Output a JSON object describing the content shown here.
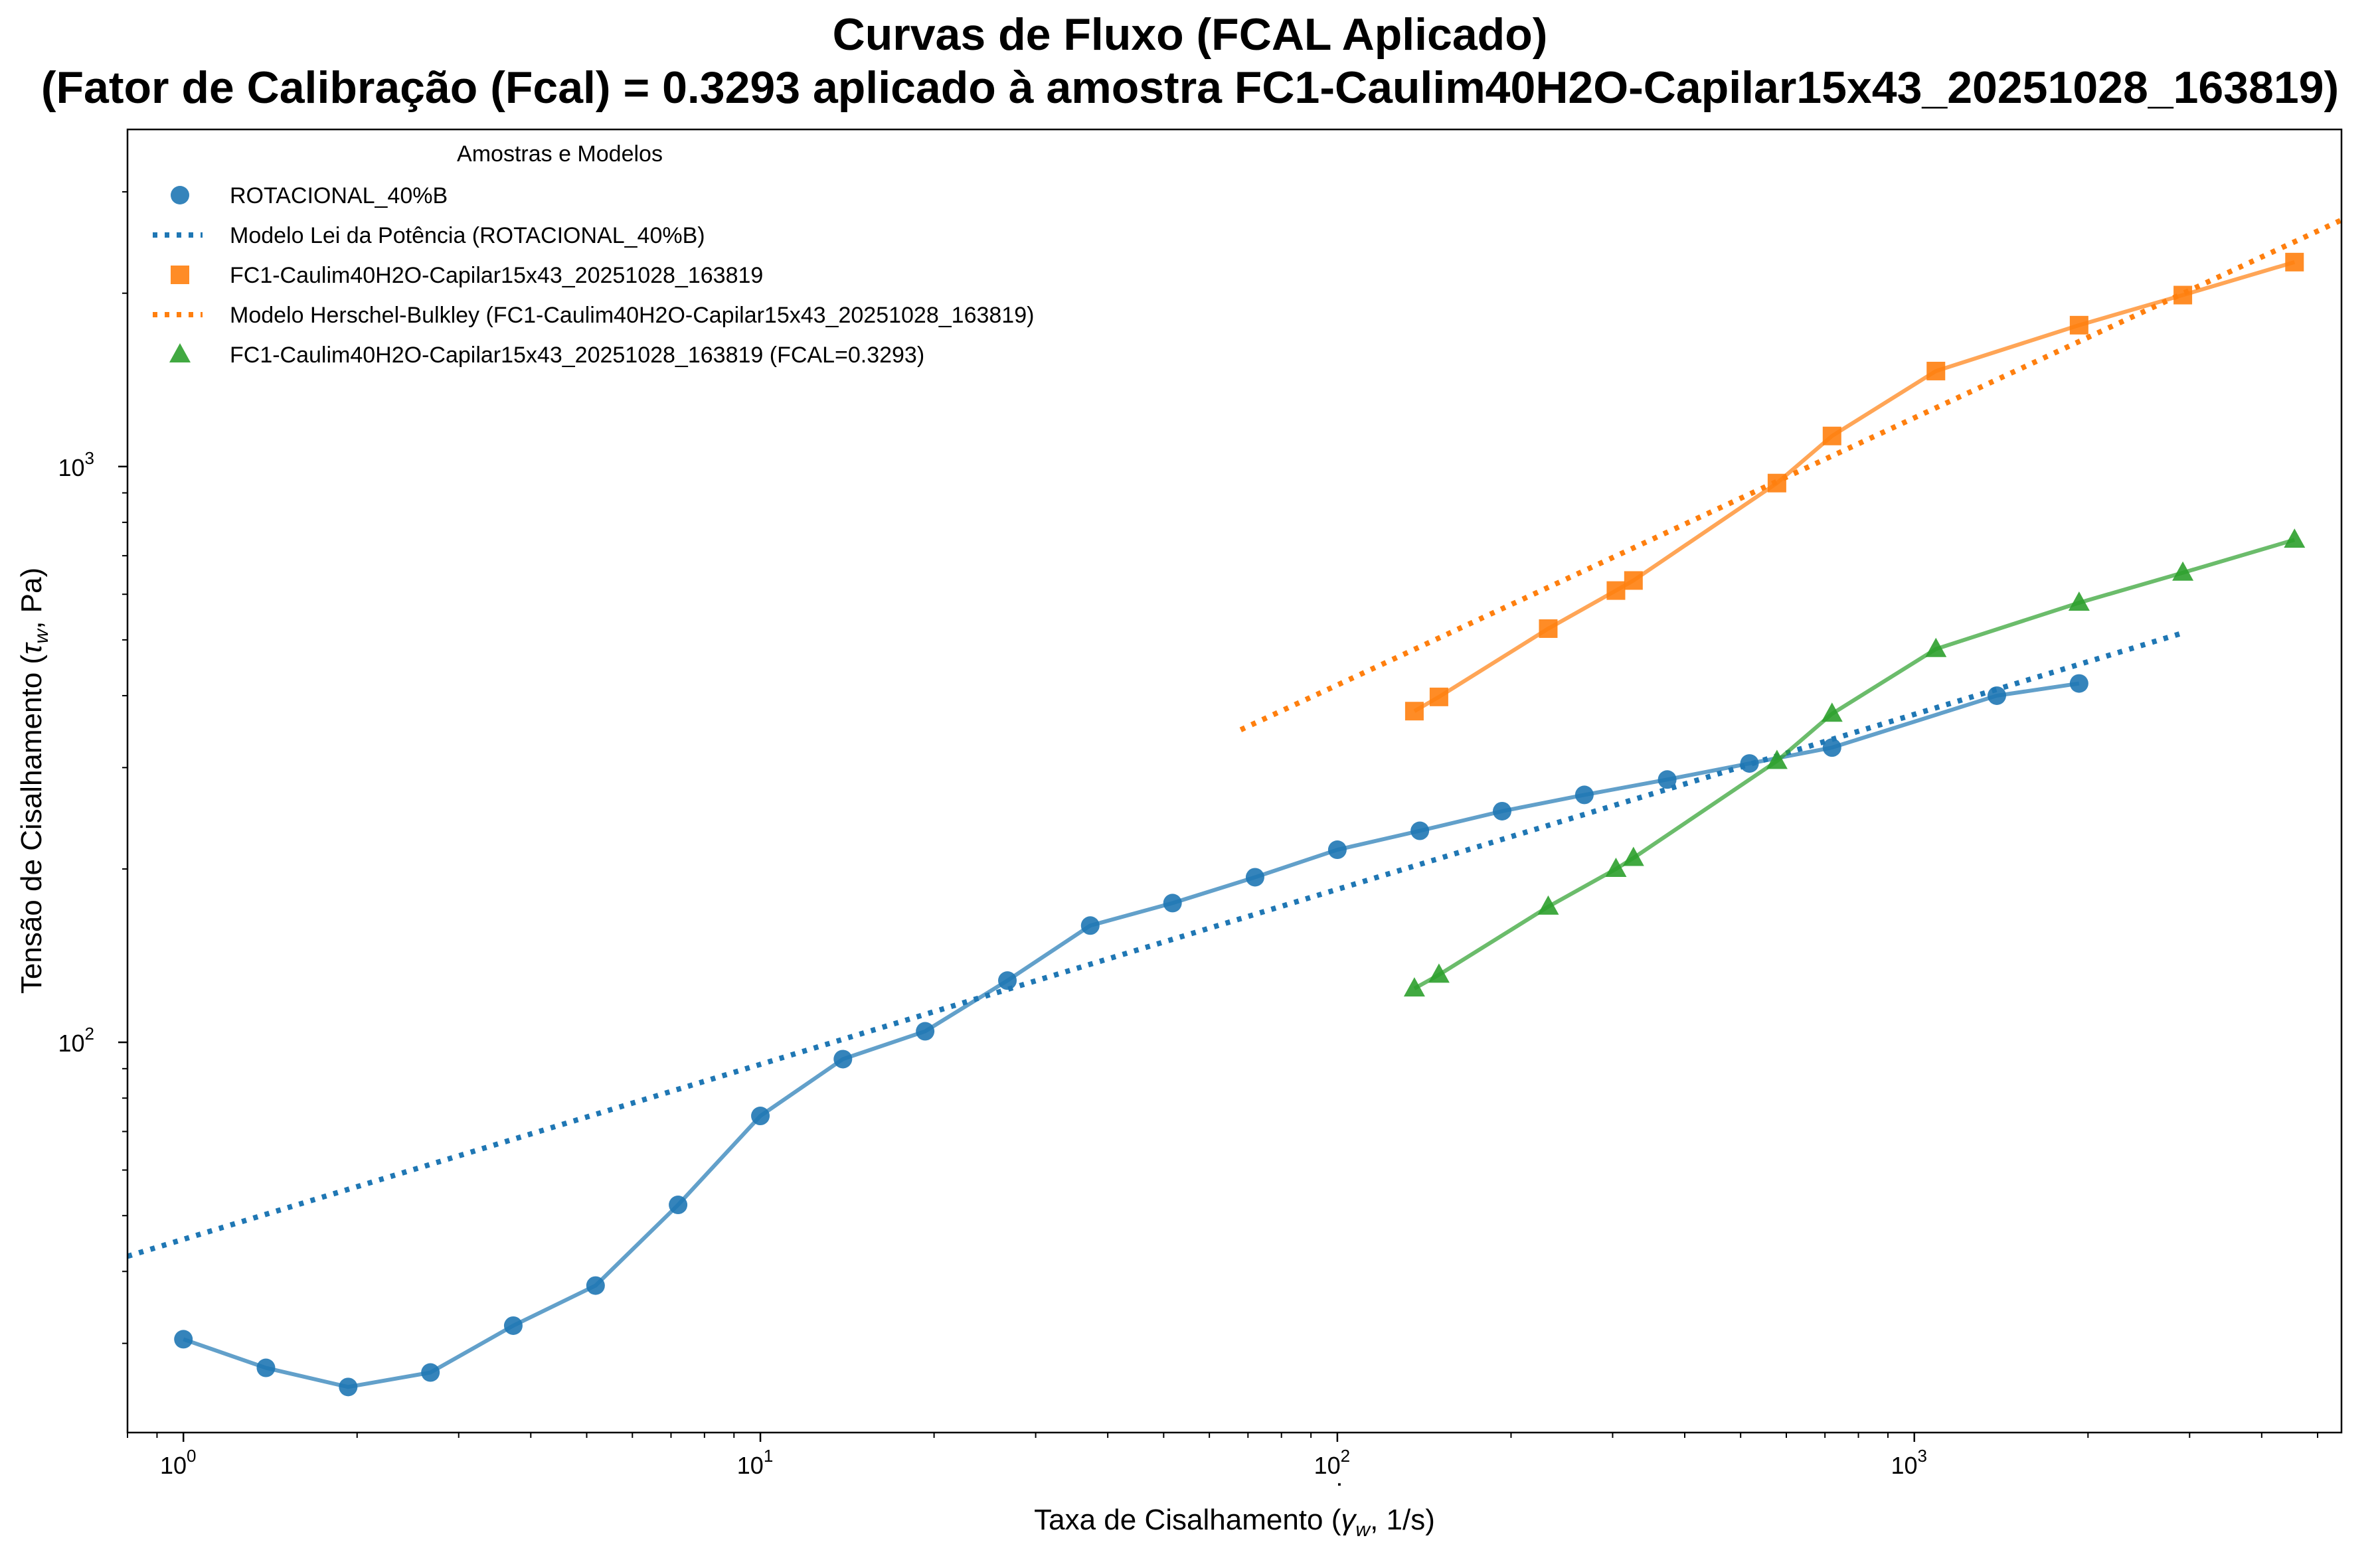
{
  "chart_data": {
    "type": "scatter",
    "title": "Curvas de Fluxo (FCAL Aplicado)",
    "subtitle": "(Fator de Calibração (Fcal) = 0.3293 aplicado à amostra FC1-Caulim40H2O-Capilar15x43_20251028_163819)",
    "xlabel_parts": [
      "Taxa de Cisalhamento (",
      "γ",
      "w",
      ", 1/s)"
    ],
    "ylabel_parts": [
      "Tensão de Cisalhamento (",
      "τ",
      "w",
      ", Pa)"
    ],
    "x_scale": "log",
    "y_scale": "log",
    "xlim": [
      0.8,
      5500
    ],
    "ylim": [
      21,
      3850
    ],
    "x_ticks": [
      {
        "value": 1,
        "mantissa": "10",
        "exp": "0"
      },
      {
        "value": 10,
        "mantissa": "10",
        "exp": "1"
      },
      {
        "value": 100,
        "mantissa": "10",
        "exp": "2"
      },
      {
        "value": 1000,
        "mantissa": "10",
        "exp": "3"
      }
    ],
    "y_ticks": [
      {
        "value": 100,
        "mantissa": "10",
        "exp": "2"
      },
      {
        "value": 1000,
        "mantissa": "10",
        "exp": "3"
      }
    ],
    "grid": false,
    "legend": {
      "title": "Amostras e Modelos",
      "placement": "top-left",
      "entries": [
        {
          "label": "ROTACIONAL_40%B",
          "kind": "marker",
          "marker": "circle",
          "color": "#1f77b4"
        },
        {
          "label": "Modelo Lei da Potência (ROTACIONAL_40%B)",
          "kind": "dotted",
          "color": "#1f77b4"
        },
        {
          "label": "FC1-Caulim40H2O-Capilar15x43_20251028_163819",
          "kind": "marker",
          "marker": "square",
          "color": "#ff7f0e"
        },
        {
          "label": "Modelo Herschel-Bulkley (FC1-Caulim40H2O-Capilar15x43_20251028_163819)",
          "kind": "dotted",
          "color": "#ff7f0e"
        },
        {
          "label": "FC1-Caulim40H2O-Capilar15x43_20251028_163819 (FCAL=0.3293)",
          "kind": "marker",
          "marker": "triangle",
          "color": "#2ca02c"
        }
      ]
    },
    "series": [
      {
        "name": "ROTACIONAL_40%B",
        "marker": "circle",
        "color": "#1f77b4",
        "x": [
          1.0,
          1.39,
          1.93,
          2.68,
          3.73,
          5.18,
          7.2,
          10.0,
          13.9,
          19.3,
          26.8,
          37.3,
          51.8,
          72.0,
          100,
          139,
          193,
          268,
          373,
          518,
          720,
          1390,
          1930
        ],
        "y": [
          30.5,
          27.2,
          25.2,
          26.7,
          32.2,
          37.8,
          52.2,
          74.5,
          93.5,
          104.5,
          128,
          159.5,
          174.5,
          193.5,
          216,
          233,
          252,
          269,
          286,
          305,
          325,
          400,
          420
        ]
      },
      {
        "name": "Modelo Lei da Potência (ROTACIONAL_40%B)",
        "line": "dotted",
        "color": "#1f77b4",
        "x": [
          0.8,
          2900
        ],
        "y": [
          42.5,
          513
        ]
      },
      {
        "name": "FC1-Caulim40H2O-Capilar15x43_20251028_163819",
        "marker": "square",
        "color": "#ff7f0e",
        "x": [
          136,
          150,
          232,
          304,
          326,
          578,
          720,
          1090,
          1930,
          2920,
          4560
        ],
        "y": [
          376,
          398,
          523,
          609,
          634,
          936,
          1130,
          1465,
          1760,
          1985,
          2265
        ]
      },
      {
        "name": "Modelo Herschel-Bulkley (FC1-Caulim40H2O-Capilar15x43_20251028_163819)",
        "line": "dotted",
        "color": "#ff7f0e",
        "x": [
          68,
          5500
        ],
        "y": [
          349,
          2680
        ]
      },
      {
        "name": "FC1-Caulim40H2O-Capilar15x43_20251028_163819 (FCAL=0.3293)",
        "marker": "triangle",
        "color": "#2ca02c",
        "x": [
          136,
          150,
          232,
          304,
          326,
          578,
          720,
          1090,
          1930,
          2920,
          4560
        ],
        "y": [
          124,
          131,
          172,
          200,
          209,
          308,
          372,
          482,
          580,
          654,
          746
        ]
      }
    ]
  }
}
